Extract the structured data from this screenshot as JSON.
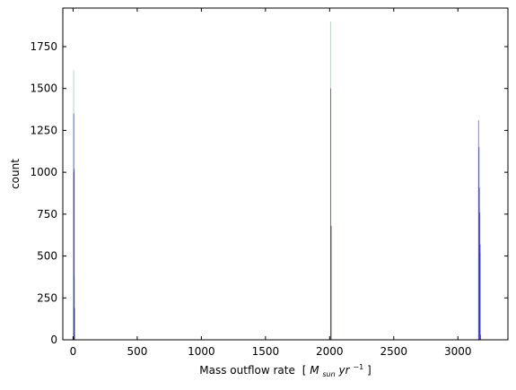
{
  "chart_data": {
    "type": "bar",
    "title": "",
    "xlabel": "Mass outflow rate",
    "xlabel_unit": {
      "open": "[",
      "M": "M",
      "sub": "sun",
      "yr": "yr",
      "sup": "−1",
      "close": "]"
    },
    "ylabel": "count",
    "xlim": [
      -80,
      3390
    ],
    "ylim": [
      0,
      1980
    ],
    "xticks": [
      0,
      500,
      1000,
      1500,
      2000,
      2500,
      3000
    ],
    "yticks": [
      0,
      250,
      500,
      750,
      1000,
      1250,
      1500,
      1750
    ],
    "grid": false,
    "series": [
      {
        "color": "#1f9e1f",
        "opacity": 0.35,
        "bars": [
          {
            "x": 1,
            "width": 3,
            "count": 1610
          },
          {
            "x": 6,
            "width": 3,
            "count": 380
          },
          {
            "x": 2004,
            "width": 3,
            "count": 1900
          },
          {
            "x": 2009,
            "width": 3,
            "count": 680
          },
          {
            "x": 3170,
            "width": 3,
            "count": 520
          }
        ]
      },
      {
        "color": "#0000dd",
        "opacity": 0.5,
        "bars": [
          {
            "x": 2,
            "width": 3,
            "count": 1350
          },
          {
            "x": 5,
            "width": 3,
            "count": 1020
          },
          {
            "x": 8,
            "width": 3,
            "count": 190
          },
          {
            "x": 3158,
            "width": 3,
            "count": 1310
          },
          {
            "x": 3161,
            "width": 3,
            "count": 1150
          },
          {
            "x": 3164,
            "width": 3,
            "count": 910
          },
          {
            "x": 3167,
            "width": 3,
            "count": 760
          },
          {
            "x": 3170,
            "width": 3,
            "count": 570
          },
          {
            "x": 3173,
            "width": 3,
            "count": 30
          }
        ]
      },
      {
        "color": "#333333",
        "opacity": 0.6,
        "bars": [
          {
            "x": 2,
            "width": 3,
            "count": 1000
          },
          {
            "x": 5,
            "width": 3,
            "count": 40
          },
          {
            "x": 2005,
            "width": 3,
            "count": 1500
          },
          {
            "x": 2008,
            "width": 3,
            "count": 680
          }
        ]
      }
    ]
  }
}
